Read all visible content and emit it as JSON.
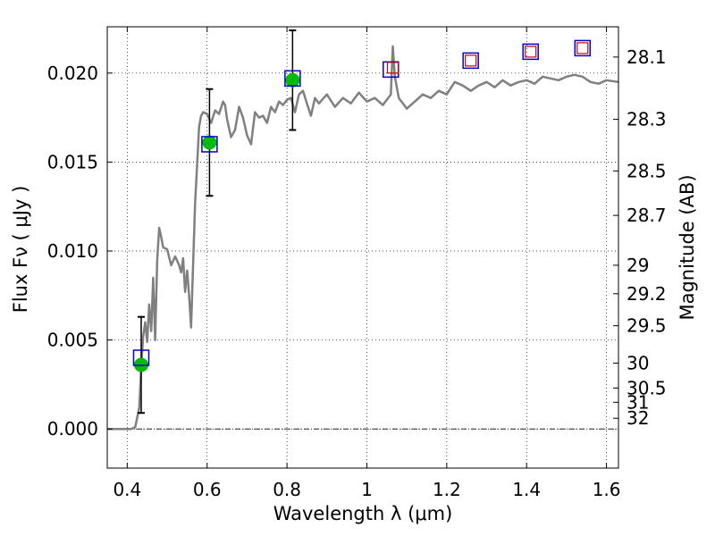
{
  "chart_data": {
    "type": "scatter",
    "xlabel": "Wavelength  λ (μm)",
    "ylabel": "Flux  Fν  ( μJy )",
    "y2label": "Magnitude (AB)",
    "xlim": [
      0.35,
      1.63
    ],
    "ylim": [
      -0.0022,
      0.0226
    ],
    "grid": true,
    "xticks": [
      0.4,
      0.6,
      0.8,
      1.0,
      1.2,
      1.4,
      1.6
    ],
    "xtick_labels": [
      "0.4",
      "0.6",
      "0.8",
      "1",
      "1.2",
      "1.4",
      "1.6"
    ],
    "yticks": [
      0.0,
      0.005,
      0.01,
      0.015,
      0.02
    ],
    "ytick_labels": [
      "0.000",
      "0.005",
      "0.010",
      "0.015",
      "0.020"
    ],
    "y2ticks": [
      {
        "label": "28.1",
        "flux": 0.0209
      },
      {
        "label": "28.3",
        "flux": 0.0174
      },
      {
        "label": "28.5",
        "flux": 0.0145
      },
      {
        "label": "28.7",
        "flux": 0.012
      },
      {
        "label": "29",
        "flux": 0.0092
      },
      {
        "label": "29.2",
        "flux": 0.0076
      },
      {
        "label": "29.5",
        "flux": 0.0058
      },
      {
        "label": "30",
        "flux": 0.0037
      },
      {
        "label": "30.5",
        "flux": 0.0023
      },
      {
        "label": "31",
        "flux": 0.0015
      },
      {
        "label": "32",
        "flux": 0.0006
      }
    ],
    "template_spectrum": {
      "color": "#808080",
      "x": [
        0.35,
        0.41,
        0.42,
        0.43,
        0.435,
        0.44,
        0.445,
        0.45,
        0.455,
        0.46,
        0.465,
        0.47,
        0.475,
        0.48,
        0.485,
        0.49,
        0.5,
        0.51,
        0.52,
        0.53,
        0.535,
        0.54,
        0.545,
        0.55,
        0.555,
        0.56,
        0.57,
        0.58,
        0.585,
        0.59,
        0.6,
        0.61,
        0.62,
        0.63,
        0.64,
        0.645,
        0.65,
        0.66,
        0.67,
        0.68,
        0.69,
        0.7,
        0.71,
        0.72,
        0.73,
        0.74,
        0.75,
        0.76,
        0.77,
        0.78,
        0.79,
        0.8,
        0.81,
        0.82,
        0.83,
        0.84,
        0.85,
        0.86,
        0.87,
        0.88,
        0.9,
        0.92,
        0.94,
        0.96,
        0.98,
        1.0,
        1.02,
        1.04,
        1.06,
        1.065,
        1.07,
        1.08,
        1.1,
        1.12,
        1.14,
        1.16,
        1.18,
        1.2,
        1.22,
        1.24,
        1.26,
        1.28,
        1.3,
        1.32,
        1.34,
        1.36,
        1.38,
        1.4,
        1.42,
        1.44,
        1.46,
        1.48,
        1.5,
        1.52,
        1.54,
        1.56,
        1.58,
        1.6,
        1.63
      ],
      "y": [
        0.0,
        0.0,
        0.0001,
        0.0012,
        0.0035,
        0.0052,
        0.006,
        0.0049,
        0.007,
        0.0055,
        0.0085,
        0.005,
        0.0095,
        0.0113,
        0.0108,
        0.0102,
        0.0101,
        0.0092,
        0.0097,
        0.0092,
        0.0088,
        0.0096,
        0.0077,
        0.0089,
        0.0075,
        0.0057,
        0.0127,
        0.017,
        0.0176,
        0.0178,
        0.0177,
        0.0172,
        0.0179,
        0.0177,
        0.0184,
        0.0182,
        0.0174,
        0.0164,
        0.0168,
        0.0181,
        0.0175,
        0.0165,
        0.016,
        0.0178,
        0.0175,
        0.0176,
        0.0172,
        0.0181,
        0.0178,
        0.0184,
        0.0182,
        0.0185,
        0.0186,
        0.0178,
        0.0188,
        0.019,
        0.0183,
        0.0176,
        0.0186,
        0.0183,
        0.0188,
        0.0181,
        0.0186,
        0.0183,
        0.0189,
        0.0184,
        0.0186,
        0.0182,
        0.0188,
        0.0215,
        0.0198,
        0.0186,
        0.018,
        0.0184,
        0.0188,
        0.0186,
        0.019,
        0.0188,
        0.0195,
        0.0193,
        0.019,
        0.0193,
        0.0195,
        0.0192,
        0.0196,
        0.0193,
        0.0195,
        0.0196,
        0.0194,
        0.0198,
        0.0197,
        0.0196,
        0.0198,
        0.0199,
        0.0198,
        0.0195,
        0.0194,
        0.0196,
        0.0195
      ]
    },
    "observed": {
      "color": "#00bb00",
      "x": [
        0.435,
        0.606,
        0.814
      ],
      "y": [
        0.0036,
        0.0161,
        0.0196
      ],
      "yerr": [
        0.0027,
        0.003,
        0.0028
      ]
    },
    "model_photometry": {
      "color": "#0000cc",
      "x": [
        0.435,
        0.606,
        0.814,
        1.06,
        1.26,
        1.41,
        1.54
      ],
      "y": [
        0.004,
        0.016,
        0.0197,
        0.0202,
        0.0207,
        0.0212,
        0.0214
      ]
    },
    "template_photometry": {
      "color": "#cc0000",
      "x": [
        1.065,
        1.26,
        1.41,
        1.54
      ],
      "y": [
        0.0203,
        0.0207,
        0.0212,
        0.0214
      ]
    }
  }
}
